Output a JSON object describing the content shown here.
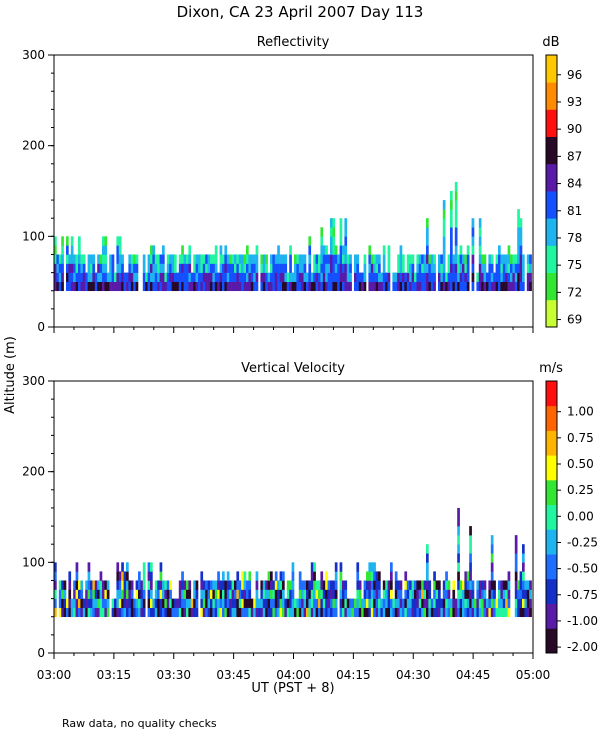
{
  "figure_title": "Dixon, CA 23 April 2007  Day 113",
  "shared_ylabel": "Altitude (m)",
  "footer_note": "Raw data, no quality checks",
  "chart_data": [
    {
      "type": "heatmap",
      "title": "Reflectivity",
      "xlabel": "UT  (PST + 8)",
      "ylabel": "Altitude (m)",
      "xlim": [
        "03:00",
        "05:00"
      ],
      "x_ticks": [
        "03:00",
        "03:15",
        "03:30",
        "03:45",
        "04:00",
        "04:15",
        "04:30",
        "04:45",
        "05:00"
      ],
      "ylim": [
        0,
        300
      ],
      "y_ticks": [
        "0",
        "100",
        "200",
        "300"
      ],
      "colorbar": {
        "unit": "dB",
        "levels": [
          "69",
          "72",
          "75",
          "78",
          "81",
          "84",
          "87",
          "90",
          "93",
          "96"
        ],
        "colors": [
          "#c8ff32",
          "#34e634",
          "#22f5a0",
          "#1eb4f0",
          "#1450ff",
          "#5a1aa8",
          "#280a28",
          "#ff1010",
          "#ff8c00",
          "#ffc800"
        ]
      },
      "profile": {
        "base_altitude_m": 40,
        "typical_top_m": 80,
        "max_echo_top_m": 160,
        "echo_top_by_time": [
          {
            "time": "03:00",
            "top_m": 100
          },
          {
            "time": "03:15",
            "top_m": 100
          },
          {
            "time": "03:30",
            "top_m": 80
          },
          {
            "time": "03:45",
            "top_m": 90
          },
          {
            "time": "04:00",
            "top_m": 80
          },
          {
            "time": "04:10",
            "top_m": 120
          },
          {
            "time": "04:30",
            "top_m": 100
          },
          {
            "time": "04:34",
            "top_m": 120
          },
          {
            "time": "04:41",
            "top_m": 160
          },
          {
            "time": "04:45",
            "top_m": 120
          },
          {
            "time": "04:55",
            "top_m": 140
          },
          {
            "time": "05:00",
            "top_m": 100
          }
        ]
      }
    },
    {
      "type": "heatmap",
      "title": "Vertical Velocity",
      "xlabel": "UT  (PST + 8)",
      "ylabel": "Altitude (m)",
      "xlim": [
        "03:00",
        "05:00"
      ],
      "x_ticks": [
        "03:00",
        "03:15",
        "03:30",
        "03:45",
        "04:00",
        "04:15",
        "04:30",
        "04:45",
        "05:00"
      ],
      "ylim": [
        0,
        300
      ],
      "y_ticks": [
        "0",
        "100",
        "200",
        "300"
      ],
      "colorbar": {
        "unit": "m/s",
        "levels": [
          "-2.00",
          "-1.00",
          "-0.75",
          "-0.50",
          "-0.25",
          "0.00",
          "0.25",
          "0.50",
          "0.75",
          "1.00"
        ],
        "colors": [
          "#280a28",
          "#5a1aa8",
          "#1430c8",
          "#1e6eff",
          "#1eb4f0",
          "#22f5a0",
          "#34e634",
          "#ffff00",
          "#ffb400",
          "#ff6400",
          "#ff1010"
        ]
      },
      "profile": {
        "base_altitude_m": 40,
        "typical_top_m": 80,
        "max_echo_top_m": 160,
        "echo_top_by_time": [
          {
            "time": "03:00",
            "top_m": 100
          },
          {
            "time": "03:20",
            "top_m": 100
          },
          {
            "time": "03:45",
            "top_m": 90
          },
          {
            "time": "04:10",
            "top_m": 100
          },
          {
            "time": "04:30",
            "top_m": 100
          },
          {
            "time": "04:34",
            "top_m": 120
          },
          {
            "time": "04:41",
            "top_m": 160
          },
          {
            "time": "04:47",
            "top_m": 120
          },
          {
            "time": "04:55",
            "top_m": 140
          },
          {
            "time": "05:00",
            "top_m": 100
          }
        ]
      }
    }
  ]
}
